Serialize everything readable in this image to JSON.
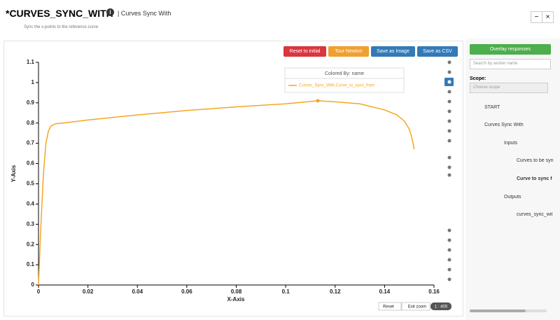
{
  "header": {
    "title": "*CURVES_SYNC_WITH",
    "subtitle": "| Curves Sync With",
    "description": "Sync the x-points to the reference curve"
  },
  "window_buttons": [
    "−",
    "×"
  ],
  "toolbar": [
    "Reset to initial",
    "Tour Newton",
    "Save as Image",
    "Save as CSV"
  ],
  "chart_data": {
    "type": "line",
    "x_label": "X-Axis",
    "y_label": "Y-Axis",
    "legend_title": "Colored By: name",
    "x": [
      0,
      0.001,
      0.002,
      0.003,
      0.004,
      0.005,
      0.007,
      0.01,
      0.02,
      0.04,
      0.06,
      0.08,
      0.1,
      0.113,
      0.12,
      0.13,
      0.14,
      0.145,
      0.148,
      0.15,
      0.151,
      0.152
    ],
    "series": [
      {
        "name": "Curves_Sync_With.Curve_to_sync_from",
        "color": "#f5a623",
        "values": [
          0,
          0.3,
          0.55,
          0.7,
          0.76,
          0.785,
          0.797,
          0.8,
          0.815,
          0.84,
          0.862,
          0.88,
          0.895,
          0.91,
          0.905,
          0.895,
          0.865,
          0.84,
          0.81,
          0.77,
          0.73,
          0.67
        ]
      }
    ],
    "highlight": {
      "x": 0.113,
      "y": 0.91
    },
    "xlim": [
      0,
      0.16
    ],
    "ylim": [
      0,
      1.1
    ],
    "xticks": [
      0,
      0.02,
      0.04,
      0.06,
      0.08,
      0.1,
      0.12,
      0.14,
      0.16
    ],
    "yticks": [
      0,
      0.1,
      0.2,
      0.3,
      0.4,
      0.5,
      0.6,
      0.7,
      0.8,
      0.9,
      1,
      1.1
    ]
  },
  "zoom_controls": [
    "Reset",
    "Exit zoom",
    "1 : 400"
  ],
  "sidebar": {
    "button": "Overlay responses",
    "search_placeholder": "Search by worker name",
    "scope_label": "Scope:",
    "scope_placeholder": "Choose scope",
    "tree": [
      "START",
      "Curves Sync With",
      "Inputs",
      "Curves to be syn",
      "Curve to sync f",
      "Outputs",
      "curves_sync_wit"
    ]
  }
}
